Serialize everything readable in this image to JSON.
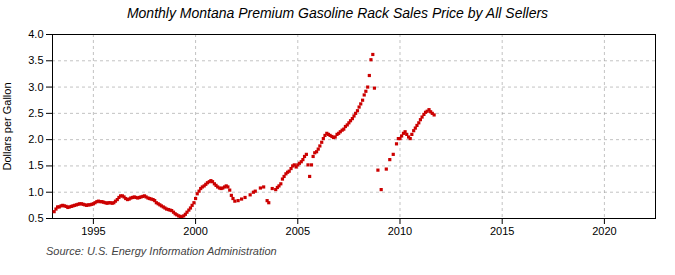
{
  "chart_data": {
    "type": "scatter",
    "title": "Monthly Montana Premium Gasoline Rack Sales Price by All Sellers",
    "ylabel": "Dollars per Gallon",
    "source": "Source: U.S. Energy Information Administration",
    "color": "#cc0000",
    "marker": "square",
    "grid": true,
    "xlim": [
      1993.0,
      2022.5
    ],
    "ylim": [
      0.5,
      4.0
    ],
    "xticks": [
      1995,
      2000,
      2005,
      2010,
      2015,
      2020
    ],
    "yticks": [
      0.5,
      {
        "value": 1.0,
        "label": "1.0"
      },
      1.5,
      {
        "value": 2.0,
        "label": "2.0"
      },
      2.5,
      {
        "value": 3.0,
        "label": "3.0"
      },
      3.5,
      {
        "value": 4.0,
        "label": "4.0"
      }
    ],
    "x": [
      1993.08,
      1993.17,
      1993.25,
      1993.33,
      1993.42,
      1993.5,
      1993.58,
      1993.67,
      1993.75,
      1993.83,
      1993.92,
      1994.0,
      1994.08,
      1994.17,
      1994.25,
      1994.33,
      1994.42,
      1994.5,
      1994.58,
      1994.67,
      1994.75,
      1994.83,
      1994.92,
      1995.0,
      1995.08,
      1995.17,
      1995.25,
      1995.33,
      1995.42,
      1995.5,
      1995.58,
      1995.67,
      1995.75,
      1995.83,
      1995.92,
      1996.0,
      1996.08,
      1996.17,
      1996.25,
      1996.33,
      1996.42,
      1996.5,
      1996.58,
      1996.67,
      1996.75,
      1996.83,
      1996.92,
      1997.0,
      1997.08,
      1997.17,
      1997.25,
      1997.33,
      1997.42,
      1997.5,
      1997.58,
      1997.67,
      1997.75,
      1997.83,
      1997.92,
      1998.0,
      1998.08,
      1998.17,
      1998.25,
      1998.33,
      1998.42,
      1998.5,
      1998.58,
      1998.67,
      1998.75,
      1998.83,
      1998.92,
      1999.0,
      1999.08,
      1999.17,
      1999.25,
      1999.33,
      1999.42,
      1999.5,
      1999.58,
      1999.67,
      1999.75,
      1999.83,
      1999.92,
      2000.0,
      2000.08,
      2000.17,
      2000.25,
      2000.33,
      2000.42,
      2000.5,
      2000.58,
      2000.67,
      2000.75,
      2000.83,
      2000.92,
      2001.0,
      2001.08,
      2001.17,
      2001.25,
      2001.33,
      2001.42,
      2001.5,
      2001.58,
      2001.67,
      2001.75,
      2001.83,
      2001.92,
      2002.08,
      2002.25,
      2002.42,
      2002.67,
      2002.83,
      2002.92,
      2003.17,
      2003.33,
      2003.5,
      2003.58,
      2003.75,
      2003.92,
      2004.0,
      2004.08,
      2004.17,
      2004.25,
      2004.33,
      2004.42,
      2004.5,
      2004.58,
      2004.67,
      2004.75,
      2004.83,
      2004.92,
      2005.0,
      2005.08,
      2005.17,
      2005.25,
      2005.33,
      2005.42,
      2005.5,
      2005.58,
      2005.67,
      2005.75,
      2005.83,
      2005.92,
      2006.0,
      2006.08,
      2006.17,
      2006.25,
      2006.33,
      2006.42,
      2006.5,
      2006.58,
      2006.67,
      2006.75,
      2006.83,
      2006.92,
      2007.0,
      2007.08,
      2007.17,
      2007.25,
      2007.33,
      2007.42,
      2007.5,
      2007.58,
      2007.67,
      2007.75,
      2007.83,
      2007.92,
      2008.0,
      2008.08,
      2008.17,
      2008.25,
      2008.33,
      2008.42,
      2008.5,
      2008.58,
      2008.67,
      2008.75,
      2008.92,
      2009.08,
      2009.33,
      2009.5,
      2009.67,
      2009.83,
      2009.92,
      2010.0,
      2010.08,
      2010.17,
      2010.25,
      2010.33,
      2010.42,
      2010.5,
      2010.58,
      2010.67,
      2010.75,
      2010.83,
      2010.92,
      2011.0,
      2011.08,
      2011.17,
      2011.25,
      2011.33,
      2011.42,
      2011.5,
      2011.58,
      2011.67
    ],
    "values": [
      0.63,
      0.68,
      0.72,
      0.72,
      0.74,
      0.75,
      0.74,
      0.73,
      0.71,
      0.72,
      0.73,
      0.74,
      0.75,
      0.76,
      0.77,
      0.78,
      0.78,
      0.77,
      0.76,
      0.75,
      0.76,
      0.76,
      0.77,
      0.78,
      0.8,
      0.82,
      0.83,
      0.82,
      0.82,
      0.81,
      0.8,
      0.79,
      0.8,
      0.8,
      0.79,
      0.8,
      0.83,
      0.86,
      0.9,
      0.93,
      0.93,
      0.91,
      0.88,
      0.86,
      0.87,
      0.89,
      0.9,
      0.91,
      0.9,
      0.89,
      0.9,
      0.91,
      0.92,
      0.93,
      0.91,
      0.89,
      0.88,
      0.87,
      0.86,
      0.84,
      0.8,
      0.78,
      0.76,
      0.74,
      0.72,
      0.7,
      0.68,
      0.67,
      0.66,
      0.65,
      0.62,
      0.59,
      0.57,
      0.55,
      0.54,
      0.53,
      0.55,
      0.58,
      0.62,
      0.66,
      0.7,
      0.75,
      0.8,
      0.88,
      0.97,
      1.02,
      1.07,
      1.1,
      1.12,
      1.15,
      1.18,
      1.2,
      1.22,
      1.2,
      1.16,
      1.13,
      1.1,
      1.08,
      1.07,
      1.08,
      1.1,
      1.12,
      1.1,
      1.04,
      0.94,
      0.88,
      0.83,
      0.84,
      0.87,
      0.9,
      0.95,
      1.0,
      1.02,
      1.08,
      1.1,
      0.84,
      0.8,
      1.07,
      1.05,
      1.09,
      1.12,
      1.16,
      1.25,
      1.3,
      1.35,
      1.38,
      1.4,
      1.45,
      1.5,
      1.52,
      1.48,
      1.52,
      1.55,
      1.58,
      1.62,
      1.68,
      1.72,
      1.52,
      1.3,
      1.52,
      1.68,
      1.75,
      1.77,
      1.82,
      1.88,
      1.95,
      2.02,
      2.08,
      2.12,
      2.1,
      2.08,
      2.06,
      2.04,
      2.05,
      2.1,
      2.12,
      2.15,
      2.18,
      2.2,
      2.25,
      2.28,
      2.32,
      2.36,
      2.4,
      2.45,
      2.5,
      2.55,
      2.62,
      2.68,
      2.75,
      2.85,
      2.92,
      3.0,
      3.22,
      3.52,
      3.62,
      2.98,
      1.42,
      1.05,
      1.44,
      1.62,
      1.72,
      1.92,
      2.02,
      2.02,
      2.07,
      2.12,
      2.15,
      2.1,
      2.05,
      2.02,
      2.1,
      2.17,
      2.22,
      2.27,
      2.32,
      2.38,
      2.43,
      2.48,
      2.52,
      2.54,
      2.57,
      2.53,
      2.5,
      2.47
    ]
  }
}
